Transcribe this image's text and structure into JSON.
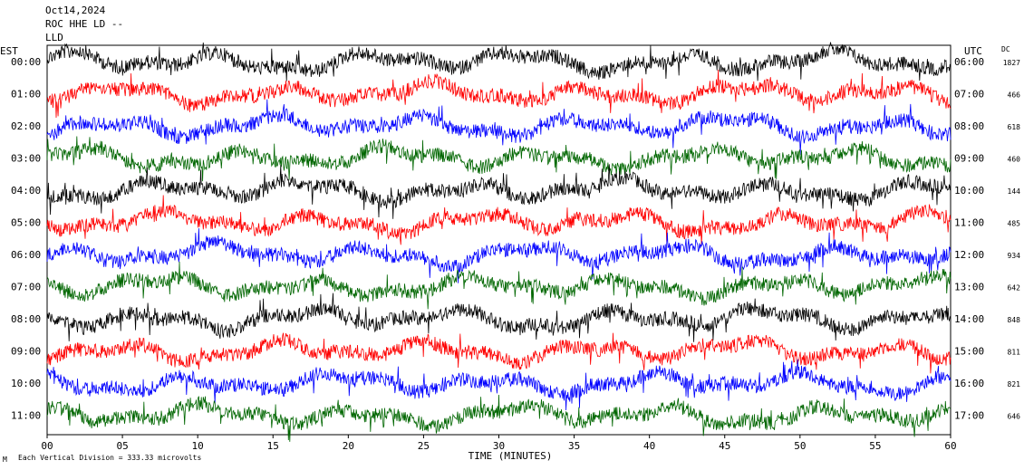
{
  "header": {
    "date": "Oct14,2024",
    "station_line1": "ROC HHE LD --",
    "station_line2": "LLD"
  },
  "chart_data": {
    "type": "line",
    "title": "",
    "left_axis_label": "EST",
    "right_axis_label": "UTC",
    "dc_label": "DC",
    "xlabel": "TIME (MINUTES)",
    "xlim": [
      0,
      60
    ],
    "x_ticks": [
      "00",
      "05",
      "10",
      "15",
      "20",
      "25",
      "30",
      "35",
      "40",
      "45",
      "50",
      "55",
      "60"
    ],
    "colors": [
      "#000000",
      "#ff0000",
      "#0000ff",
      "#006600"
    ],
    "rows": [
      {
        "est": "00:00",
        "utc": "06:00",
        "dc": "1827"
      },
      {
        "est": "01:00",
        "utc": "07:00",
        "dc": "466"
      },
      {
        "est": "02:00",
        "utc": "08:00",
        "dc": "618"
      },
      {
        "est": "03:00",
        "utc": "09:00",
        "dc": "460"
      },
      {
        "est": "04:00",
        "utc": "10:00",
        "dc": "144"
      },
      {
        "est": "05:00",
        "utc": "11:00",
        "dc": "485"
      },
      {
        "est": "06:00",
        "utc": "12:00",
        "dc": "934"
      },
      {
        "est": "07:00",
        "utc": "13:00",
        "dc": "642"
      },
      {
        "est": "08:00",
        "utc": "14:00",
        "dc": "848"
      },
      {
        "est": "09:00",
        "utc": "15:00",
        "dc": "811"
      },
      {
        "est": "10:00",
        "utc": "16:00",
        "dc": "821"
      },
      {
        "est": "11:00",
        "utc": "17:00",
        "dc": "646"
      }
    ],
    "footer_note": "Each Vertical Division =  333.33 microvolts"
  }
}
